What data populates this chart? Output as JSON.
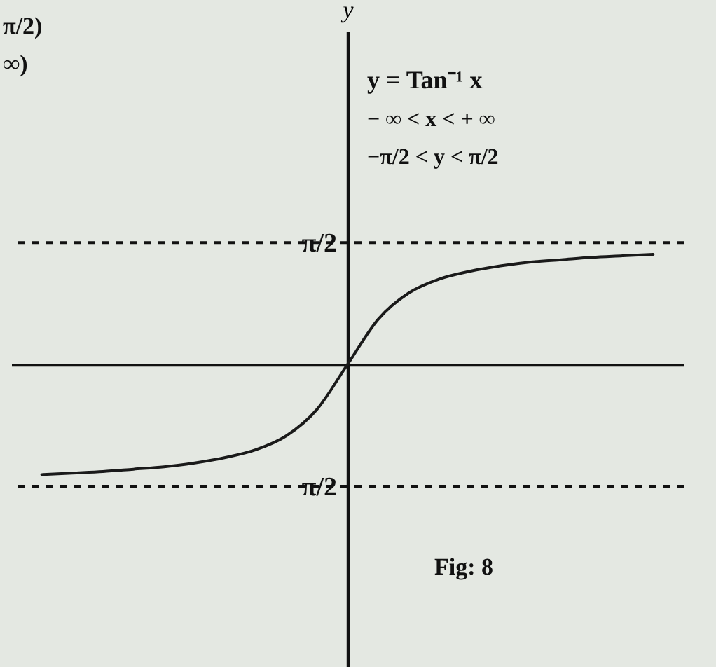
{
  "chart_data": {
    "type": "line",
    "categories": [
      null,
      null,
      null,
      null,
      null,
      null,
      null,
      null,
      null,
      null,
      null,
      null,
      null,
      null,
      null,
      null,
      null,
      null,
      null,
      null,
      null
    ],
    "values": [
      -1.42,
      -1.4,
      -1.38,
      -1.35,
      -1.32,
      -1.27,
      -1.2,
      -1.1,
      -0.92,
      -0.58,
      0,
      0.58,
      0.92,
      1.1,
      1.2,
      1.27,
      1.32,
      1.35,
      1.38,
      1.4,
      1.42
    ],
    "color": "#1a1a1a",
    "ylabel": "y",
    "ylim": [
      -3.9,
      4.3
    ],
    "yticks": [
      {
        "value": -1.5708,
        "label": "π/2"
      },
      {
        "value": 1.5708,
        "label": "π/2"
      }
    ],
    "ref_lines": [
      {
        "axis": "y",
        "value": 1.5708,
        "line_style": "dashed"
      },
      {
        "axis": "y",
        "value": -1.5708,
        "line_style": "dashed"
      }
    ],
    "annotations": [
      "y = Tan⁻¹ x",
      "− ∞ < x < + ∞",
      "−π/2 < y < π/2",
      "Fig: 8",
      "π/2)",
      "∞)"
    ]
  }
}
